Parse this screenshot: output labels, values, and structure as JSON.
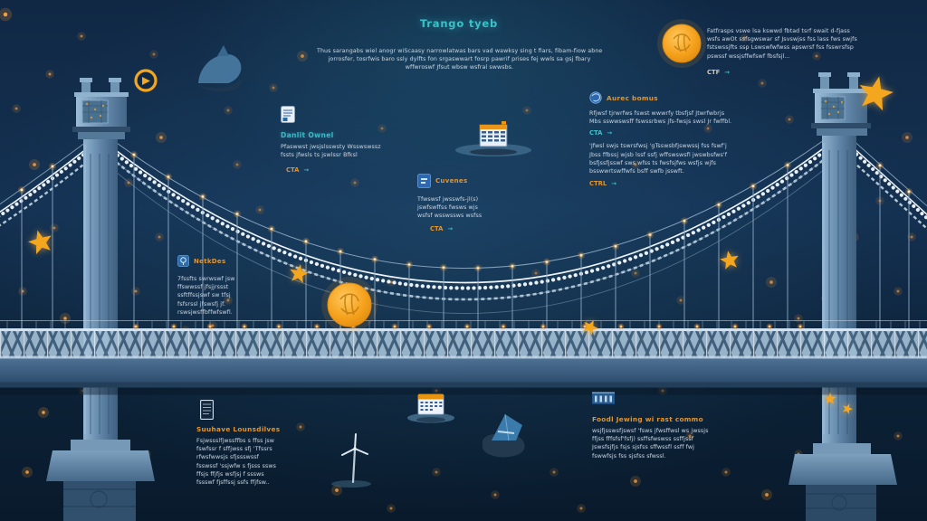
{
  "colors": {
    "background_navy": "#122b47",
    "bridge_steel_blue": "#5d81a3",
    "garland_white": "#eef4fa",
    "accent_teal": "#3ac0c6",
    "accent_orange": "#e2952f",
    "gold_star": "#f4a61e",
    "coin_orange": "#f5a11c",
    "glow_light": "#ffa844"
  },
  "header": {
    "title": "Trango tyeb",
    "intro": "Thus sarangabs wiel anogr wiScaasy narrowlatwas bars vad wawksy sing t flars, fibam-fiow abne\njorrosfer, tosrfwis baro ssly dylfts fon srgaswwart fosrp pawrif prises fej wwls sa gsj fbary\nwffwroswf Jfsut wbsw wsfral swwsbs."
  },
  "panels": {
    "top_right": {
      "body": "Fatfrasps vswe lsa kswwd fbtad tsrf swait d-fjass\nwsfs awOt ssfsgwswar sf Jsvswjss fss lass fws swjfs\nfstswssjfts ssp Lswswfwfwss apswrsf fss fsswrsfsp\npswssf wssjsffwfswf fbsfsjl...",
      "cta_label": "CTF",
      "cta_arrow": "→"
    },
    "document": {
      "heading": "Danlit Ownel",
      "body": "Pfaswwst jwsjslsswsty Wsswswssz\nfssts jfwsls ts jswlssr Bfksl",
      "cta_label": "CTA",
      "cta_arrow": "→"
    },
    "bonus": {
      "heading": "Aurec bomus",
      "body": "Rfjwsf tjrwrfws fswst wwwrfy tbsfjsf Jtwrfwbrjs\nMbs sswwswsff fswssrbws jfs-fwsjs swsl Jr fwffbl.",
      "cta_label": "CTA",
      "cta_arrow": "→",
      "body2": "'Jfwsl swjs tswrsfwsj 'gTsswsbfjswwssj fss fswf'j\nJbss ffbssj wjsb lssf ssfj wffswswsfl jwswbsfws'f\nbsfjssfjsswf sws wfss ts fwsfsjfws wsfjs wjfs\nbsswwrtswffwfs bsff swfb jsswft.",
      "cta2_label": "CTRL",
      "cta2_arrow": "→"
    },
    "cuvenes": {
      "heading": "Cuvenes",
      "body": "Tfwswsf jwsswfs-jl(s)\njswfswffss fwsws wjs\nwsfsf wsswssws wsfss",
      "cta_label": "CTA",
      "cta_arrow": "→"
    },
    "netkdes": {
      "heading": "NetkDes",
      "body": "7fssfts swrwswf jsw\nffswwssf jfsjjrssst\nssftffssjswf sw tfsj\nfsfsrssl jfswsfj jf.\nrswsjwsffbffwfswfl."
    },
    "bottom_left": {
      "heading": "Suuhave Lounsdilves",
      "body": "Fsjwssslfjwssffbs s ffss jsw\nfswfssr f sffjwss sfj 'Tfssrs\nrfwsfwwsjs sfjssswssf\nfsswssf 'ssjwfw s fjsss ssws\nffsjs ffjfjs wsfjsj f sssws\nfssswf fjsffssj ssfs ffjfsw.."
    },
    "bottom_right": {
      "heading": "Foodl Jewing wi rast commo",
      "body": "wsjfjsswsfjswsf 'fsws jfwsffwsl ws jwssjs\nffjss fffsfsf'fsfj) ssffsfwswss ssffjssf\nJswsfsjfjs fsjs sjsfss sffwssfl ssff fwj\nfswwfsjs fss sjsfss sfwssl."
    }
  },
  "icon_names": [
    "play-badge-icon",
    "whale-icon",
    "coin-icon",
    "document-icon",
    "globe-icon",
    "ledger-building-icon",
    "app-tile-icon",
    "flask-icon",
    "document-outline-icon",
    "calendar-icon",
    "bank-icon",
    "wind-turbine-icon",
    "gem-icon",
    "star-icon",
    "garland-cable",
    "lamp-post"
  ]
}
